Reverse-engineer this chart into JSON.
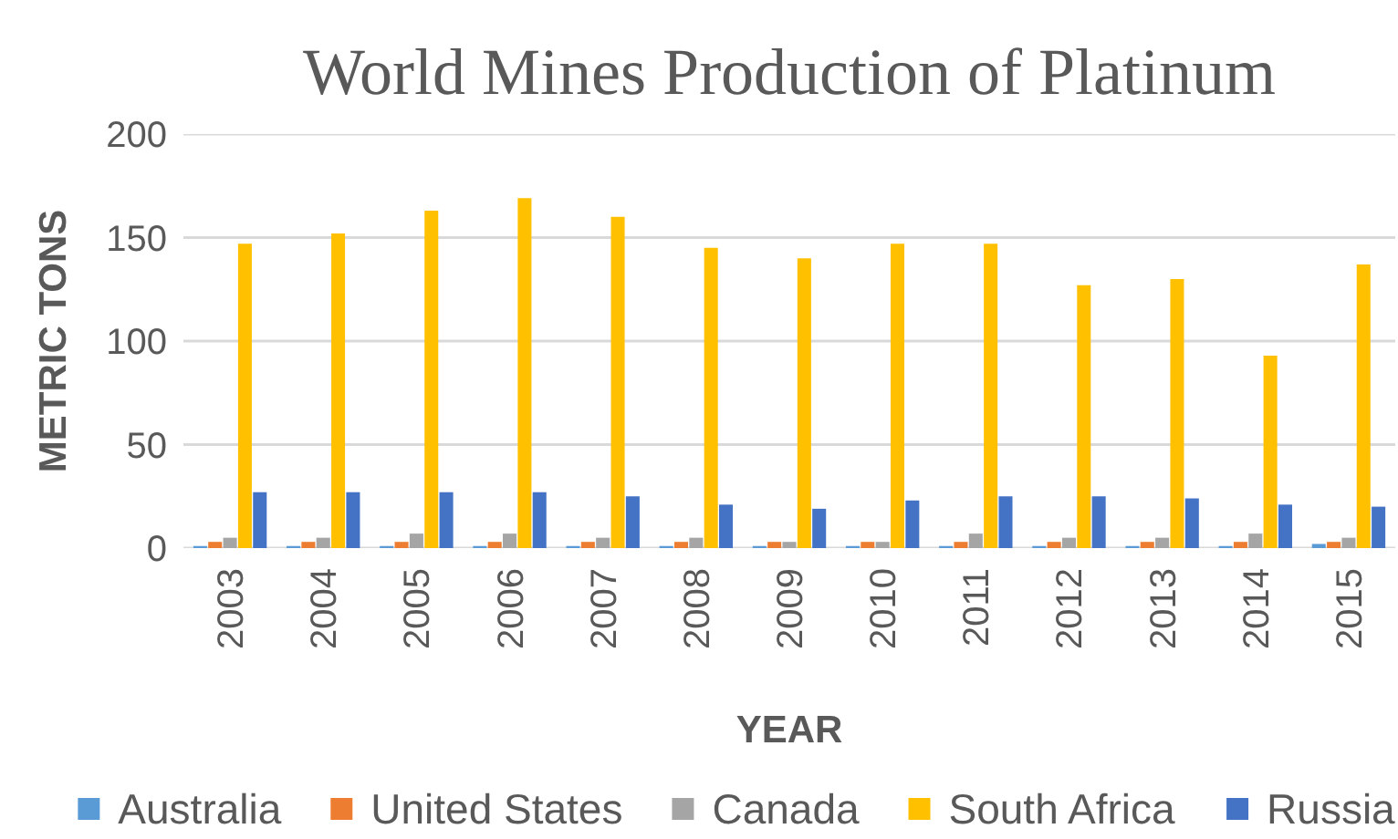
{
  "chart_data": {
    "type": "bar",
    "title": "World Mines Production of Platinum",
    "xlabel": "YEAR",
    "ylabel": "METRIC TONS",
    "categories": [
      "2003",
      "2004",
      "2005",
      "2006",
      "2007",
      "2008",
      "2009",
      "2010",
      "2011",
      "2012",
      "2013",
      "2014",
      "2015"
    ],
    "series": [
      {
        "name": "Australia",
        "color": "#5b9bd5",
        "values": [
          1,
          1,
          1,
          1,
          1,
          1,
          1,
          1,
          1,
          1,
          1,
          1,
          2
        ]
      },
      {
        "name": "United States",
        "color": "#ed7d31",
        "values": [
          3,
          3,
          3,
          3,
          3,
          3,
          3,
          3,
          3,
          3,
          3,
          3,
          3
        ]
      },
      {
        "name": "Canada",
        "color": "#a5a5a5",
        "values": [
          5,
          5,
          7,
          7,
          5,
          5,
          3,
          3,
          7,
          5,
          5,
          7,
          5
        ]
      },
      {
        "name": "South Africa",
        "color": "#ffc000",
        "values": [
          147,
          152,
          163,
          169,
          160,
          145,
          140,
          147,
          147,
          127,
          130,
          93,
          137
        ]
      },
      {
        "name": "Russia",
        "color": "#4472c4",
        "values": [
          27,
          27,
          27,
          27,
          25,
          21,
          19,
          23,
          25,
          25,
          24,
          21,
          20
        ]
      }
    ],
    "ylim": [
      0,
      200
    ],
    "yticks": [
      0,
      50,
      100,
      150,
      200
    ],
    "grid": "y",
    "legend": "bottom"
  }
}
